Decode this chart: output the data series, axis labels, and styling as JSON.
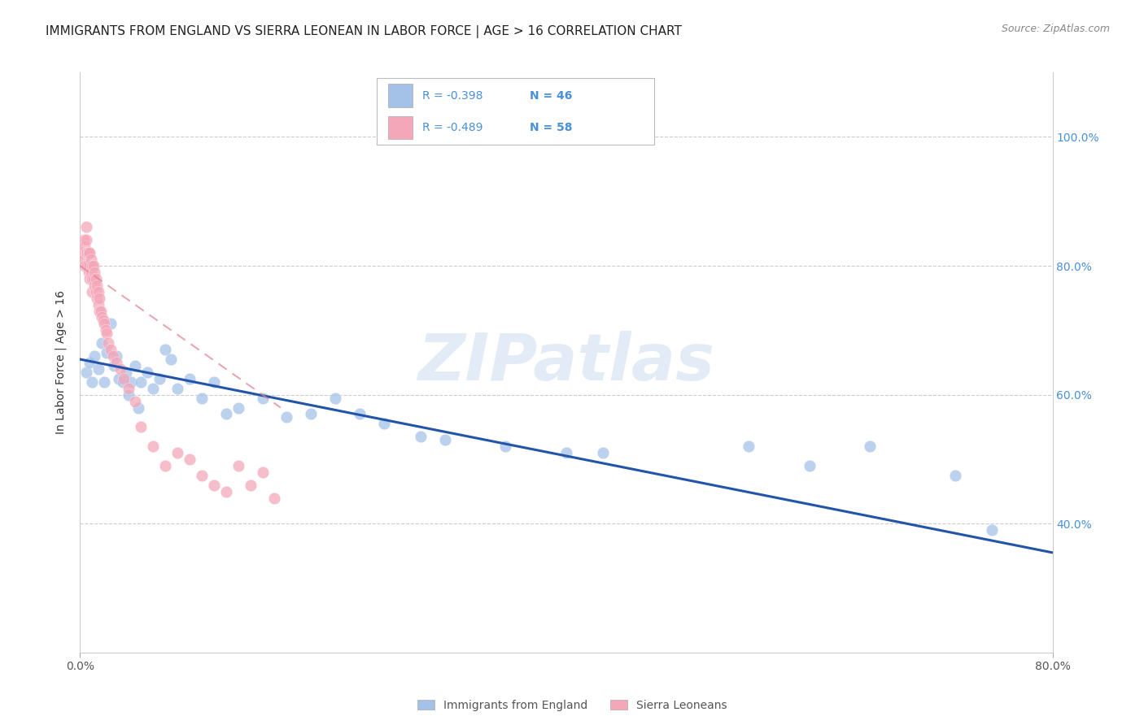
{
  "title": "IMMIGRANTS FROM ENGLAND VS SIERRA LEONEAN IN LABOR FORCE | AGE > 16 CORRELATION CHART",
  "source": "Source: ZipAtlas.com",
  "ylabel": "In Labor Force | Age > 16",
  "legend1_label": "Immigrants from England",
  "legend2_label": "Sierra Leoneans",
  "R1": -0.398,
  "N1": 46,
  "R2": -0.489,
  "N2": 58,
  "color1": "#a4c2e8",
  "color2": "#f4a7b9",
  "line1_color": "#2255aa",
  "line2_color": "#e08090",
  "xlim": [
    0.0,
    0.8
  ],
  "ylim": [
    0.2,
    1.1
  ],
  "right_yticks": [
    0.4,
    0.6,
    0.8,
    1.0
  ],
  "right_yticklabels": [
    "40.0%",
    "60.0%",
    "80.0%",
    "100.0%"
  ],
  "background_color": "#ffffff",
  "scatter1_x": [
    0.005,
    0.008,
    0.01,
    0.012,
    0.015,
    0.018,
    0.02,
    0.022,
    0.025,
    0.028,
    0.03,
    0.032,
    0.035,
    0.038,
    0.04,
    0.042,
    0.045,
    0.048,
    0.05,
    0.055,
    0.06,
    0.065,
    0.07,
    0.075,
    0.08,
    0.09,
    0.1,
    0.11,
    0.12,
    0.13,
    0.15,
    0.17,
    0.19,
    0.21,
    0.23,
    0.25,
    0.28,
    0.3,
    0.35,
    0.4,
    0.43,
    0.55,
    0.6,
    0.65,
    0.72,
    0.75
  ],
  "scatter1_y": [
    0.635,
    0.65,
    0.62,
    0.66,
    0.64,
    0.68,
    0.62,
    0.665,
    0.71,
    0.645,
    0.66,
    0.625,
    0.62,
    0.635,
    0.6,
    0.62,
    0.645,
    0.58,
    0.62,
    0.635,
    0.61,
    0.625,
    0.67,
    0.655,
    0.61,
    0.625,
    0.595,
    0.62,
    0.57,
    0.58,
    0.595,
    0.565,
    0.57,
    0.595,
    0.57,
    0.555,
    0.535,
    0.53,
    0.52,
    0.51,
    0.51,
    0.52,
    0.49,
    0.52,
    0.475,
    0.39
  ],
  "scatter2_x": [
    0.002,
    0.003,
    0.003,
    0.004,
    0.004,
    0.005,
    0.005,
    0.005,
    0.006,
    0.006,
    0.007,
    0.007,
    0.008,
    0.008,
    0.008,
    0.009,
    0.009,
    0.01,
    0.01,
    0.01,
    0.011,
    0.011,
    0.012,
    0.012,
    0.013,
    0.013,
    0.014,
    0.014,
    0.015,
    0.015,
    0.016,
    0.016,
    0.017,
    0.018,
    0.019,
    0.02,
    0.021,
    0.022,
    0.023,
    0.025,
    0.027,
    0.03,
    0.033,
    0.036,
    0.04,
    0.045,
    0.05,
    0.06,
    0.07,
    0.08,
    0.09,
    0.1,
    0.11,
    0.12,
    0.13,
    0.14,
    0.15,
    0.16
  ],
  "scatter2_y": [
    0.82,
    0.84,
    0.81,
    0.83,
    0.8,
    0.86,
    0.84,
    0.82,
    0.82,
    0.8,
    0.82,
    0.79,
    0.82,
    0.8,
    0.78,
    0.81,
    0.79,
    0.8,
    0.78,
    0.76,
    0.8,
    0.78,
    0.79,
    0.77,
    0.78,
    0.76,
    0.77,
    0.75,
    0.76,
    0.74,
    0.75,
    0.73,
    0.73,
    0.72,
    0.715,
    0.71,
    0.7,
    0.695,
    0.68,
    0.67,
    0.66,
    0.65,
    0.64,
    0.625,
    0.61,
    0.59,
    0.55,
    0.52,
    0.49,
    0.51,
    0.5,
    0.475,
    0.46,
    0.45,
    0.49,
    0.46,
    0.48,
    0.44
  ],
  "watermark_text": "ZIPatlas",
  "title_fontsize": 11,
  "source_fontsize": 9,
  "blue_line_x": [
    0.0,
    0.8
  ],
  "blue_line_y": [
    0.655,
    0.355
  ],
  "pink_line_x": [
    0.0,
    0.165
  ],
  "pink_line_y": [
    0.8,
    0.58
  ]
}
